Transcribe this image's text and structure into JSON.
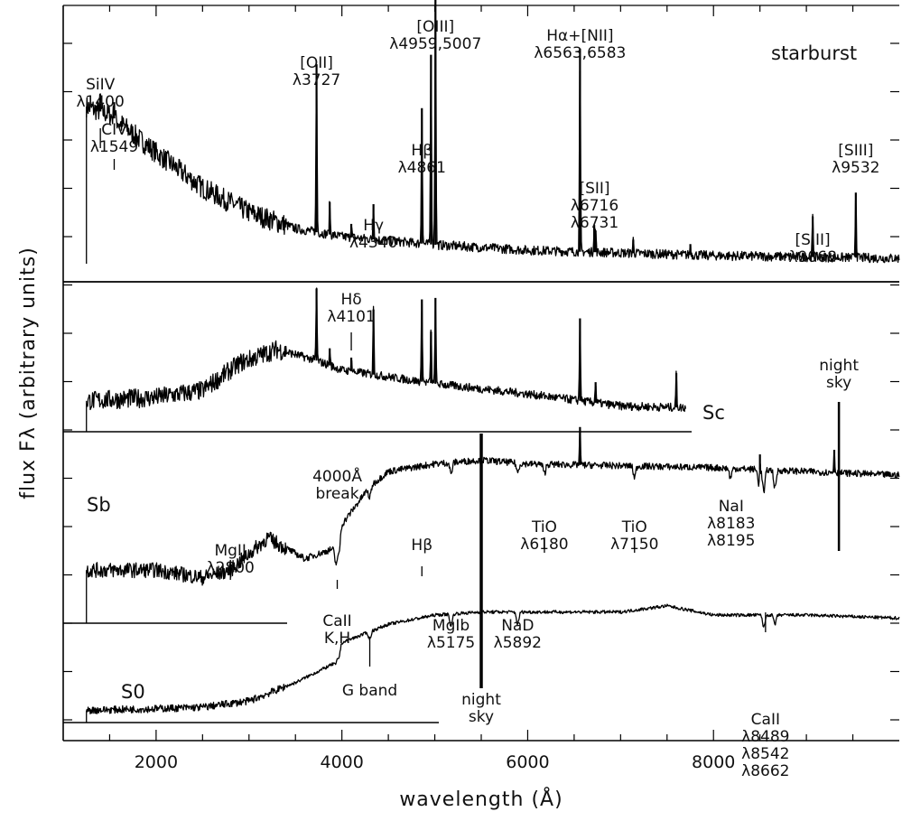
{
  "chart_data": {
    "type": "line",
    "xlabel": "wavelength (Å)",
    "ylabel": "flux Fλ (arbitrary units)",
    "xlim": [
      1000,
      10000
    ],
    "x_ticks": [
      2000,
      4000,
      6000,
      8000
    ],
    "series": [
      {
        "name": "starburst",
        "range": [
          1250,
          10000
        ],
        "baseline": [
          [
            1250,
            0.58
          ],
          [
            1500,
            0.55
          ],
          [
            2000,
            0.41
          ],
          [
            2500,
            0.28
          ],
          [
            3000,
            0.19
          ],
          [
            3500,
            0.13
          ],
          [
            4000,
            0.1
          ],
          [
            5000,
            0.07
          ],
          [
            6000,
            0.05
          ],
          [
            8000,
            0.03
          ],
          [
            10000,
            0.02
          ]
        ],
        "noise": 0.05,
        "lines": [
          [
            1400,
            0.05
          ],
          [
            1549,
            0.06
          ],
          [
            3727,
            0.62
          ],
          [
            3869,
            0.12
          ],
          [
            4101,
            0.05
          ],
          [
            4340,
            0.13
          ],
          [
            4861,
            0.5
          ],
          [
            4959,
            0.7
          ],
          [
            5007,
            0.98
          ],
          [
            6563,
            0.75
          ],
          [
            6716,
            0.1
          ],
          [
            6731,
            0.08
          ],
          [
            7136,
            0.05
          ],
          [
            7751,
            0.04
          ],
          [
            9068,
            0.15
          ],
          [
            9532,
            0.24
          ]
        ]
      },
      {
        "name": "Sc",
        "range": [
          1250,
          7700
        ],
        "baseline": [
          [
            1250,
            0.18
          ],
          [
            2000,
            0.2
          ],
          [
            2500,
            0.24
          ],
          [
            2900,
            0.4
          ],
          [
            3300,
            0.48
          ],
          [
            3700,
            0.42
          ],
          [
            4000,
            0.36
          ],
          [
            5000,
            0.28
          ],
          [
            6000,
            0.22
          ],
          [
            7000,
            0.15
          ],
          [
            7700,
            0.14
          ]
        ],
        "noise": 0.07,
        "lines": [
          [
            3727,
            0.42
          ],
          [
            3869,
            0.1
          ],
          [
            4101,
            0.08
          ],
          [
            4340,
            0.38
          ],
          [
            4861,
            0.48
          ],
          [
            4959,
            0.3
          ],
          [
            5007,
            0.5
          ],
          [
            6563,
            0.48
          ],
          [
            6731,
            0.12
          ],
          [
            7600,
            0.2
          ]
        ]
      },
      {
        "name": "Sb",
        "range": [
          1250,
          10000
        ],
        "baseline": [
          [
            1250,
            0.28
          ],
          [
            2000,
            0.28
          ],
          [
            2500,
            0.24
          ],
          [
            2800,
            0.28
          ],
          [
            3200,
            0.45
          ],
          [
            3600,
            0.34
          ],
          [
            3950,
            0.4
          ],
          [
            4000,
            0.52
          ],
          [
            4300,
            0.72
          ],
          [
            4500,
            0.8
          ],
          [
            5000,
            0.84
          ],
          [
            5500,
            0.86
          ],
          [
            6000,
            0.84
          ],
          [
            7000,
            0.83
          ],
          [
            8000,
            0.82
          ],
          [
            9000,
            0.8
          ],
          [
            10000,
            0.78
          ]
        ],
        "noise": 0.05,
        "lines": [
          [
            6563,
            0.2
          ],
          [
            8500,
            0.08
          ],
          [
            9300,
            0.12
          ]
        ],
        "absorptions": [
          [
            3934,
            0.08
          ],
          [
            3968,
            0.08
          ],
          [
            4300,
            0.06
          ],
          [
            5175,
            0.06
          ],
          [
            5892,
            0.05
          ],
          [
            6180,
            0.05
          ],
          [
            7150,
            0.06
          ],
          [
            8183,
            0.05
          ],
          [
            8489,
            0.08
          ],
          [
            8542,
            0.12
          ],
          [
            8662,
            0.1
          ]
        ]
      },
      {
        "name": "S0",
        "range": [
          1250,
          10000
        ],
        "baseline": [
          [
            1250,
            0.08
          ],
          [
            2000,
            0.09
          ],
          [
            2500,
            0.1
          ],
          [
            3000,
            0.14
          ],
          [
            3500,
            0.26
          ],
          [
            3900,
            0.38
          ],
          [
            4000,
            0.52
          ],
          [
            4500,
            0.64
          ],
          [
            5000,
            0.7
          ],
          [
            5500,
            0.72
          ],
          [
            6000,
            0.72
          ],
          [
            7000,
            0.72
          ],
          [
            7500,
            0.76
          ],
          [
            8000,
            0.7
          ],
          [
            9000,
            0.7
          ],
          [
            10000,
            0.68
          ]
        ],
        "noise": 0.03,
        "absorptions": [
          [
            3934,
            0.05
          ],
          [
            3968,
            0.05
          ],
          [
            4300,
            0.05
          ],
          [
            5175,
            0.08
          ],
          [
            5892,
            0.08
          ],
          [
            8542,
            0.08
          ],
          [
            8662,
            0.06
          ]
        ]
      }
    ],
    "annotations": [
      {
        "lines": [
          "SiIV",
          "λ1400"
        ],
        "x": 1400,
        "series": "starburst"
      },
      {
        "lines": [
          "CIV",
          "λ1549"
        ],
        "x": 1549,
        "series": "starburst"
      },
      {
        "lines": [
          "[OII]",
          "λ3727"
        ],
        "x": 3727,
        "series": "starburst"
      },
      {
        "lines": [
          "Hγ",
          "λ4340"
        ],
        "x": 4340,
        "series": "starburst"
      },
      {
        "lines": [
          "Hβ",
          "λ4861"
        ],
        "x": 4861,
        "series": "starburst"
      },
      {
        "lines": [
          "[OIII]",
          "λ4959,5007"
        ],
        "x": 5007,
        "series": "starburst"
      },
      {
        "lines": [
          "Hα+[NII]",
          "λ6563,6583"
        ],
        "x": 6563,
        "series": "starburst"
      },
      {
        "lines": [
          "[SII]",
          "λ6716",
          "λ6731"
        ],
        "x": 6720,
        "series": "starburst"
      },
      {
        "lines": [
          "[SIII]",
          "λ9068"
        ],
        "x": 9068,
        "series": "starburst"
      },
      {
        "lines": [
          "[SIII]",
          "λ9532"
        ],
        "x": 9532,
        "series": "starburst"
      },
      {
        "lines": [
          "Hδ",
          "λ4101"
        ],
        "x": 4101,
        "series": "Sc"
      },
      {
        "lines": [
          "night",
          "sky"
        ],
        "x": 9350,
        "series": "Sc"
      },
      {
        "lines": [
          "4000Å",
          "break"
        ],
        "x": 3950,
        "series": "Sb"
      },
      {
        "lines": [
          "MgII",
          "λ2800"
        ],
        "x": 2800,
        "series": "Sb"
      },
      {
        "lines": [
          "TiO",
          "λ6180"
        ],
        "x": 6180,
        "series": "Sb"
      },
      {
        "lines": [
          "TiO",
          "λ7150"
        ],
        "x": 7150,
        "series": "Sb"
      },
      {
        "lines": [
          "NaI",
          "λ8183",
          "λ8195"
        ],
        "x": 8190,
        "series": "Sb"
      },
      {
        "lines": [
          "CaII",
          "K,H"
        ],
        "x": 3950,
        "series": "S0"
      },
      {
        "lines": [
          "Hβ"
        ],
        "x": 4861,
        "series": "S0"
      },
      {
        "lines": [
          "MgIb",
          "λ5175"
        ],
        "x": 5175,
        "series": "S0"
      },
      {
        "lines": [
          "NaD",
          "λ5892"
        ],
        "x": 5892,
        "series": "S0"
      },
      {
        "lines": [
          "G band"
        ],
        "x": 4300,
        "series": "S0"
      },
      {
        "lines": [
          "CaII",
          "λ8489",
          "λ8542",
          "λ8662"
        ],
        "x": 8560,
        "series": "S0"
      },
      {
        "lines": [
          "night",
          "sky"
        ],
        "x": 5500,
        "series": "S0"
      }
    ]
  }
}
